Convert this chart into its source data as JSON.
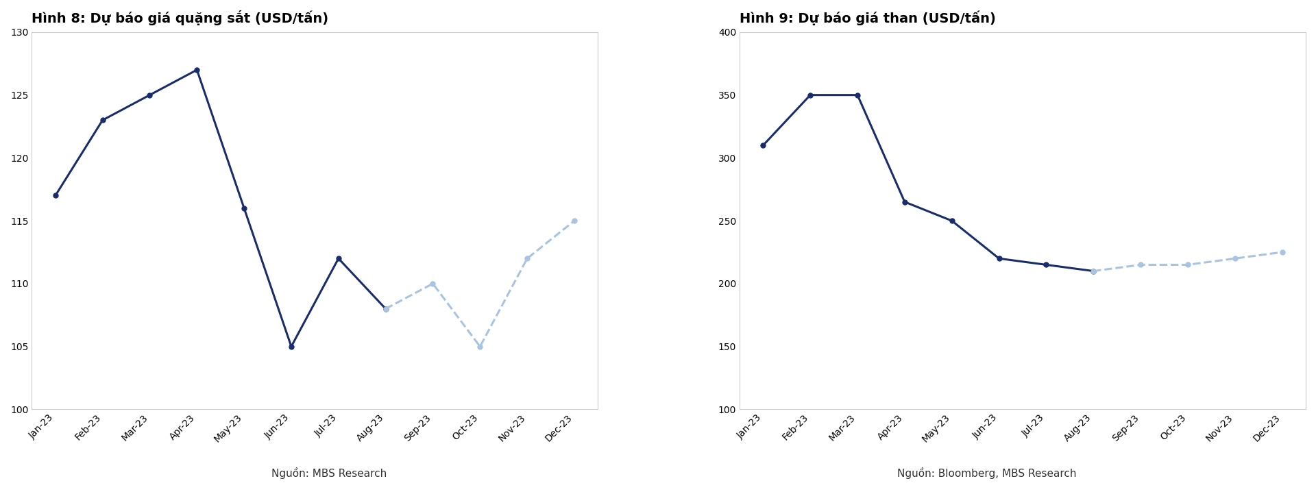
{
  "chart1": {
    "title": "Hình 8: Dự báo giá quặng sắt (USD/tấn)",
    "source": "Nguồn: MBS Research",
    "months": [
      "Jan-23",
      "Feb-23",
      "Mar-23",
      "Apr-23",
      "May-23",
      "Jun-23",
      "Jul-23",
      "Aug-23",
      "Sep-23",
      "Oct-23",
      "Nov-23",
      "Dec-23"
    ],
    "solid_values": [
      117,
      123,
      125,
      127,
      116,
      105,
      112,
      108,
      null,
      null,
      null,
      null
    ],
    "dashed_values": [
      null,
      null,
      null,
      null,
      null,
      null,
      null,
      108,
      110,
      105,
      112,
      115
    ],
    "ylim": [
      100,
      130
    ],
    "yticks": [
      100,
      105,
      110,
      115,
      120,
      125,
      130
    ]
  },
  "chart2": {
    "title": "Hình 9: Dự báo giá than (USD/tấn)",
    "source": "Nguồn: Bloomberg, MBS Research",
    "months": [
      "Jan-23",
      "Feb-23",
      "Mar-23",
      "Apr-23",
      "May-23",
      "Jun-23",
      "Jul-23",
      "Aug-23",
      "Sep-23",
      "Oct-23",
      "Nov-23",
      "Dec-23"
    ],
    "solid_values": [
      310,
      350,
      350,
      265,
      250,
      220,
      215,
      210,
      null,
      null,
      null,
      null
    ],
    "dashed_values": [
      null,
      null,
      null,
      null,
      null,
      null,
      null,
      210,
      215,
      215,
      220,
      225
    ],
    "ylim": [
      100,
      400
    ],
    "yticks": [
      100,
      150,
      200,
      250,
      300,
      350,
      400
    ]
  },
  "solid_color": "#1a2d6b",
  "dashed_color": "#a8c4e0",
  "line_width": 2.2,
  "marker_size": 5,
  "title_fontsize": 14,
  "tick_fontsize": 10,
  "source_fontsize": 11,
  "bg_color": "#ffffff",
  "plot_bg_color": "#ffffff",
  "spine_color": "#aaaaaa"
}
